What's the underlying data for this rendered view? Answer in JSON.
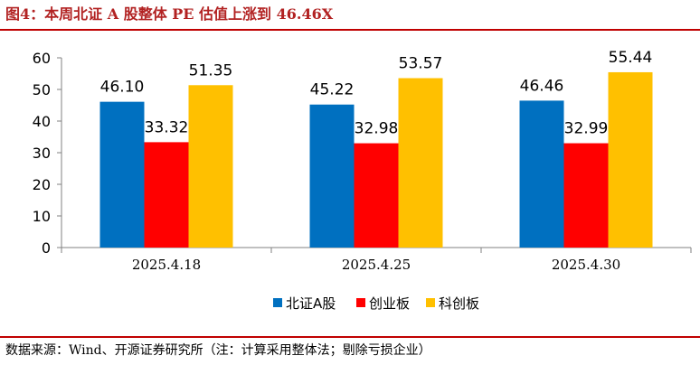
{
  "header": {
    "title": "图4：本周北证 A 股整体 PE 估值上涨到 46.46X"
  },
  "footer": {
    "source": "数据来源：Wind、开源证券研究所（注：计算采用整体法；剔除亏损企业）"
  },
  "chart_data": {
    "type": "bar",
    "title": "",
    "xlabel": "",
    "ylabel": "",
    "categories": [
      "2025.4.18",
      "2025.4.25",
      "2025.4.30"
    ],
    "series": [
      {
        "name": "北证A股",
        "color": "#0070c0",
        "values": [
          46.1,
          45.22,
          46.46
        ],
        "labels": [
          "46.10",
          "45.22",
          "46.46"
        ]
      },
      {
        "name": "创业板",
        "color": "#ff0000",
        "values": [
          33.32,
          32.98,
          32.99
        ],
        "labels": [
          "33.32",
          "32.98",
          "32.99"
        ]
      },
      {
        "name": "科创板",
        "color": "#ffc000",
        "values": [
          51.35,
          53.57,
          55.44
        ],
        "labels": [
          "51.35",
          "53.57",
          "55.44"
        ]
      }
    ],
    "ylim": [
      0,
      60
    ],
    "yticks": [
      "0",
      "10",
      "20",
      "30",
      "40",
      "50",
      "60"
    ],
    "grid": false,
    "legend": "bottom-center"
  }
}
